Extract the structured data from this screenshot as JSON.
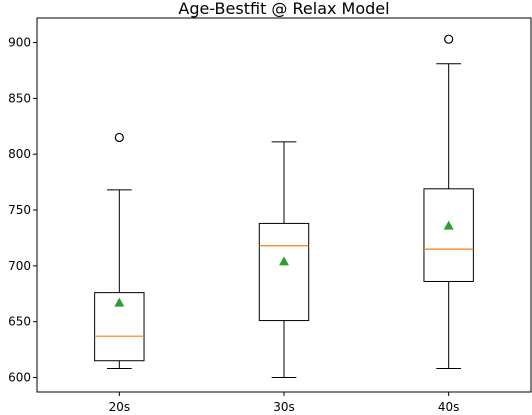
{
  "chart_data": {
    "type": "box",
    "title": "Age-Bestfit @ Relax Model",
    "xlabel": "",
    "ylabel": "",
    "categories": [
      "20s",
      "30s",
      "40s"
    ],
    "ylim": [
      587,
      922
    ],
    "yticks": [
      600,
      650,
      700,
      750,
      800,
      850,
      900
    ],
    "grid": false,
    "boxes": [
      {
        "label": "20s",
        "whisker_low": 608,
        "q1": 615,
        "median": 637,
        "q3": 676,
        "whisker_high": 768,
        "mean": 667,
        "outliers": [
          815
        ]
      },
      {
        "label": "30s",
        "whisker_low": 600,
        "q1": 651,
        "median": 718,
        "q3": 738,
        "whisker_high": 811,
        "mean": 704,
        "outliers": []
      },
      {
        "label": "40s",
        "whisker_low": 608,
        "q1": 686,
        "median": 715,
        "q3": 769,
        "whisker_high": 881,
        "mean": 736,
        "outliers": [
          903
        ]
      }
    ],
    "colors": {
      "box": "#000000",
      "median": "#ff7f0e",
      "mean": "#2ca02c",
      "outlier": "#000000"
    }
  }
}
